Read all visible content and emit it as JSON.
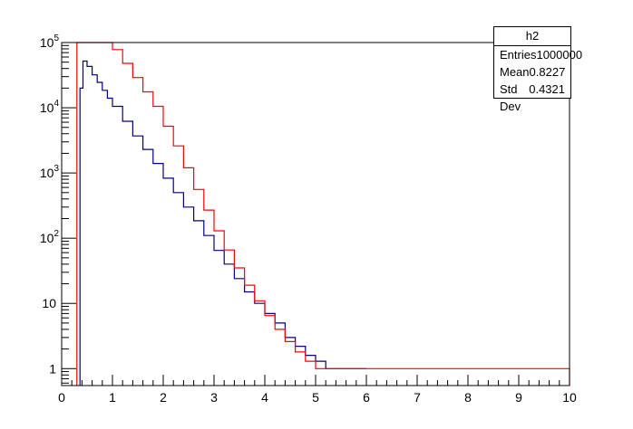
{
  "chart_data": {
    "type": "line",
    "title": "",
    "xlabel": "",
    "ylabel": "",
    "xlim": [
      0,
      10
    ],
    "ylim": [
      0.55,
      100000
    ],
    "yscale": "log",
    "grid": false,
    "x_ticks": [
      "0",
      "1",
      "2",
      "3",
      "4",
      "5",
      "6",
      "7",
      "8",
      "9",
      "10"
    ],
    "y_ticks": [
      {
        "value": 1,
        "label": "1"
      },
      {
        "value": 10,
        "label": "10"
      },
      {
        "value": 100,
        "label": "10",
        "exp": "2"
      },
      {
        "value": 1000,
        "label": "10",
        "exp": "3"
      },
      {
        "value": 10000,
        "label": "10",
        "exp": "4"
      },
      {
        "value": 100000,
        "label": "10",
        "exp": "5"
      }
    ],
    "series": [
      {
        "color": "#000080",
        "points": [
          [
            0.36,
            20000
          ],
          [
            0.42,
            52000
          ],
          [
            0.5,
            43000
          ],
          [
            0.6,
            32000
          ],
          [
            0.7,
            24500
          ],
          [
            0.8,
            18500
          ],
          [
            0.9,
            14000
          ],
          [
            1.0,
            10500
          ],
          [
            1.2,
            6200
          ],
          [
            1.4,
            3700
          ],
          [
            1.6,
            2300
          ],
          [
            1.8,
            1400
          ],
          [
            2.0,
            830
          ],
          [
            2.2,
            500
          ],
          [
            2.4,
            300
          ],
          [
            2.6,
            185
          ],
          [
            2.8,
            110
          ],
          [
            3.0,
            65
          ],
          [
            3.2,
            40
          ],
          [
            3.4,
            24
          ],
          [
            3.6,
            15
          ],
          [
            3.8,
            10
          ],
          [
            4.0,
            7
          ],
          [
            4.2,
            5
          ],
          [
            4.4,
            3
          ],
          [
            4.6,
            2.2
          ],
          [
            4.8,
            1.6
          ],
          [
            5.0,
            1.3
          ],
          [
            5.2,
            1.0
          ],
          [
            5.4,
            1.0
          ],
          [
            5.6,
            1.0
          ],
          [
            5.8,
            1.0
          ],
          [
            6.0,
            1.0
          ]
        ]
      },
      {
        "color": "#ff0000",
        "points": [
          [
            0.3,
            100000
          ],
          [
            0.9,
            100000
          ],
          [
            1.0,
            78000
          ],
          [
            1.2,
            48000
          ],
          [
            1.4,
            29000
          ],
          [
            1.6,
            17500
          ],
          [
            1.8,
            10500
          ],
          [
            2.0,
            5200
          ],
          [
            2.2,
            2600
          ],
          [
            2.4,
            1200
          ],
          [
            2.6,
            560
          ],
          [
            2.8,
            270
          ],
          [
            3.0,
            130
          ],
          [
            3.2,
            66
          ],
          [
            3.4,
            35
          ],
          [
            3.6,
            19
          ],
          [
            3.8,
            11
          ],
          [
            4.0,
            6.5
          ],
          [
            4.2,
            4
          ],
          [
            4.4,
            2.6
          ],
          [
            4.6,
            1.8
          ],
          [
            4.8,
            1.3
          ],
          [
            5.0,
            1.0
          ],
          [
            10.0,
            0.55
          ]
        ]
      }
    ]
  },
  "stats": {
    "title": "h2",
    "rows": [
      {
        "label": "Entries",
        "value": "1000000"
      },
      {
        "label": "Mean",
        "value": "0.8227"
      },
      {
        "label": "Std Dev",
        "value": "0.4321"
      }
    ]
  }
}
